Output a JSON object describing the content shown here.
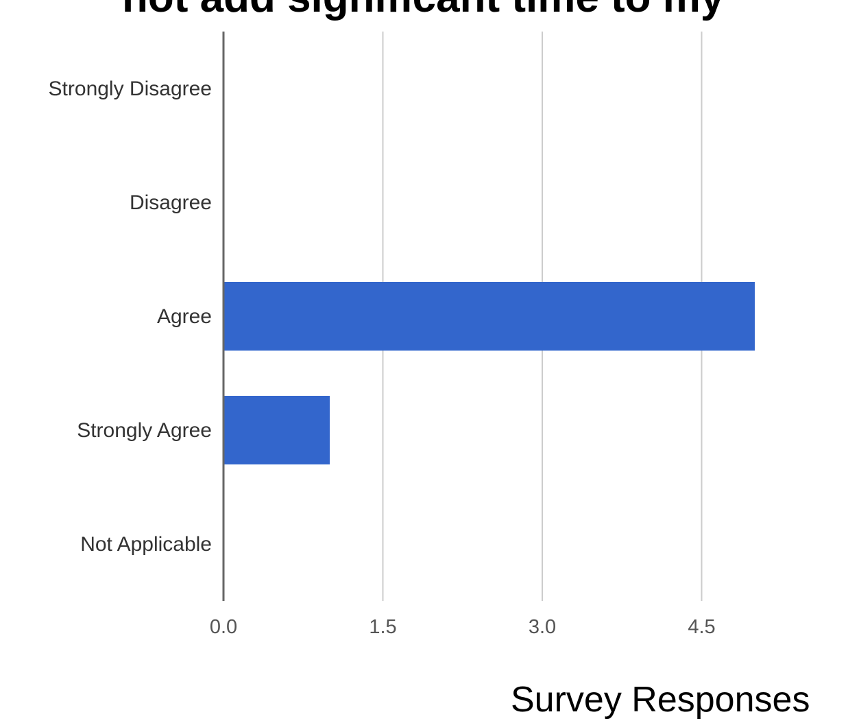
{
  "title_visible": "not add significant time to my",
  "footer_caption": "Survey Responses",
  "chart_data": {
    "type": "bar",
    "orientation": "horizontal",
    "categories": [
      "Strongly Disagree",
      "Disagree",
      "Agree",
      "Strongly Agree",
      "Not Applicable"
    ],
    "values": [
      0,
      0,
      5,
      1,
      0
    ],
    "x_ticks": [
      "0.0",
      "1.5",
      "3.0",
      "4.5"
    ],
    "xlim": [
      0,
      6
    ],
    "grid": true,
    "colors": {
      "bar": "#3366cc",
      "grid": "#cccccc",
      "axis": "#666666"
    }
  }
}
